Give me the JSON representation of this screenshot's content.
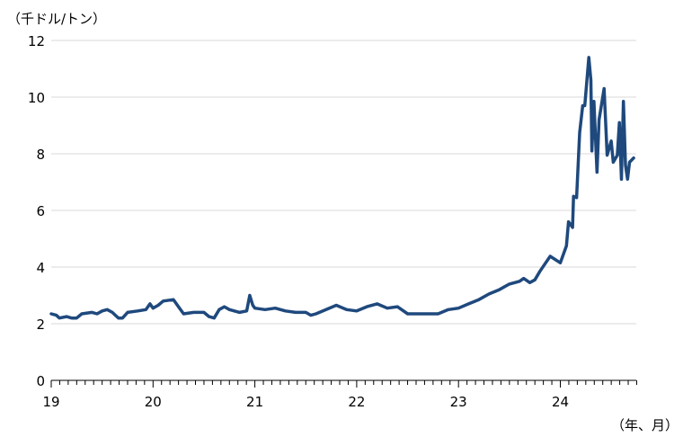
{
  "chart_data": {
    "type": "line",
    "ylabel": "（千ドル/トン）",
    "xlabel": "（年、月）",
    "ylim": [
      0,
      12
    ],
    "yticks": [
      "0",
      "2",
      "4",
      "6",
      "8",
      "10",
      "12"
    ],
    "xticks": [
      "19",
      "20",
      "21",
      "22",
      "23",
      "24"
    ],
    "grid": true,
    "line_color": "#1f497d",
    "series": [
      {
        "points": [
          [
            19.0,
            2.35
          ],
          [
            19.05,
            2.3
          ],
          [
            19.08,
            2.2
          ],
          [
            19.15,
            2.25
          ],
          [
            19.2,
            2.2
          ],
          [
            19.25,
            2.2
          ],
          [
            19.3,
            2.35
          ],
          [
            19.4,
            2.4
          ],
          [
            19.45,
            2.35
          ],
          [
            19.5,
            2.45
          ],
          [
            19.55,
            2.5
          ],
          [
            19.6,
            2.4
          ],
          [
            19.63,
            2.3
          ],
          [
            19.66,
            2.2
          ],
          [
            19.7,
            2.2
          ],
          [
            19.75,
            2.4
          ],
          [
            19.85,
            2.45
          ],
          [
            19.93,
            2.5
          ],
          [
            19.97,
            2.7
          ],
          [
            20.0,
            2.55
          ],
          [
            20.05,
            2.65
          ],
          [
            20.1,
            2.8
          ],
          [
            20.2,
            2.85
          ],
          [
            20.25,
            2.6
          ],
          [
            20.3,
            2.35
          ],
          [
            20.4,
            2.4
          ],
          [
            20.5,
            2.4
          ],
          [
            20.55,
            2.25
          ],
          [
            20.6,
            2.2
          ],
          [
            20.65,
            2.5
          ],
          [
            20.7,
            2.6
          ],
          [
            20.75,
            2.5
          ],
          [
            20.85,
            2.4
          ],
          [
            20.92,
            2.45
          ],
          [
            20.95,
            3.0
          ],
          [
            20.98,
            2.65
          ],
          [
            21.0,
            2.55
          ],
          [
            21.1,
            2.5
          ],
          [
            21.2,
            2.55
          ],
          [
            21.3,
            2.45
          ],
          [
            21.4,
            2.4
          ],
          [
            21.5,
            2.4
          ],
          [
            21.55,
            2.3
          ],
          [
            21.6,
            2.35
          ],
          [
            21.7,
            2.5
          ],
          [
            21.8,
            2.65
          ],
          [
            21.9,
            2.5
          ],
          [
            22.0,
            2.45
          ],
          [
            22.1,
            2.6
          ],
          [
            22.2,
            2.7
          ],
          [
            22.3,
            2.55
          ],
          [
            22.4,
            2.6
          ],
          [
            22.5,
            2.35
          ],
          [
            22.6,
            2.35
          ],
          [
            22.7,
            2.35
          ],
          [
            22.8,
            2.35
          ],
          [
            22.9,
            2.5
          ],
          [
            23.0,
            2.55
          ],
          [
            23.1,
            2.7
          ],
          [
            23.2,
            2.85
          ],
          [
            23.3,
            3.05
          ],
          [
            23.4,
            3.2
          ],
          [
            23.5,
            3.4
          ],
          [
            23.6,
            3.5
          ],
          [
            23.64,
            3.6
          ],
          [
            23.7,
            3.45
          ],
          [
            23.75,
            3.55
          ],
          [
            23.8,
            3.85
          ],
          [
            23.9,
            4.38
          ],
          [
            24.0,
            4.15
          ],
          [
            24.06,
            4.75
          ],
          [
            24.08,
            5.6
          ],
          [
            24.12,
            5.4
          ],
          [
            24.13,
            6.5
          ],
          [
            24.16,
            6.45
          ],
          [
            24.19,
            8.75
          ],
          [
            24.22,
            9.7
          ],
          [
            24.24,
            9.7
          ],
          [
            24.28,
            11.4
          ],
          [
            24.3,
            10.6
          ],
          [
            24.31,
            8.1
          ],
          [
            24.33,
            9.85
          ],
          [
            24.36,
            7.35
          ],
          [
            24.38,
            9.2
          ],
          [
            24.43,
            10.3
          ],
          [
            24.46,
            7.95
          ],
          [
            24.5,
            8.45
          ],
          [
            24.52,
            7.7
          ],
          [
            24.56,
            7.95
          ],
          [
            24.58,
            9.1
          ],
          [
            24.6,
            7.1
          ],
          [
            24.62,
            9.85
          ],
          [
            24.64,
            7.6
          ],
          [
            24.66,
            7.1
          ],
          [
            24.68,
            7.7
          ],
          [
            24.72,
            7.85
          ]
        ]
      }
    ]
  }
}
